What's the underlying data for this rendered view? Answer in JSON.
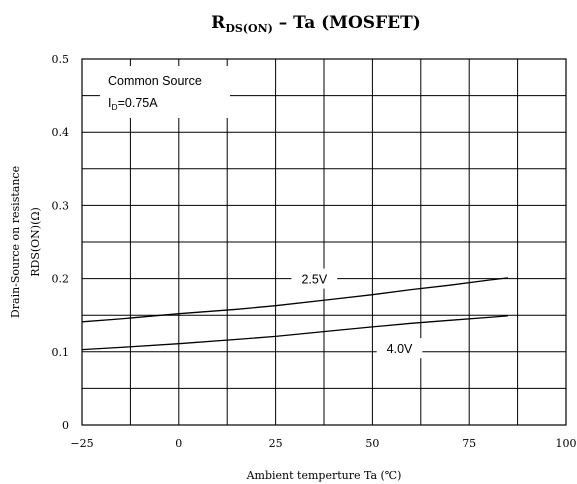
{
  "chart_data": {
    "type": "line",
    "title": {
      "main": "R",
      "subscript": "DS(ON)",
      "rest": " – Ta (MOSFET)"
    },
    "xlabel": "Ambient temperture  Ta (℃)",
    "ylabel": {
      "line1": "Drain-Source on resistance",
      "line2": "RDS(ON)(Ω)"
    },
    "xlim": [
      -25,
      100
    ],
    "ylim": [
      0,
      0.5
    ],
    "xticks": [
      -25,
      0,
      25,
      50,
      75,
      100
    ],
    "xtick_labels": [
      "−25",
      "0",
      "25",
      "50",
      "75",
      "100"
    ],
    "yticks": [
      0,
      0.1,
      0.2,
      0.3,
      0.4,
      0.5
    ],
    "ytick_labels": [
      "0",
      "0.1",
      "0.2",
      "0.3",
      "0.4",
      "0.5"
    ],
    "x_grid_step": 12.5,
    "y_grid_step": 0.05,
    "grid": true,
    "annotation": {
      "line1": "Common Source",
      "line2_main": "I",
      "line2_sub": "D",
      "line2_rest": "=0.75A"
    },
    "series": [
      {
        "name": "2.5V",
        "x": [
          -25,
          -15,
          0,
          15,
          25,
          40,
          50,
          60,
          70,
          80,
          85
        ],
        "y": [
          0.141,
          0.145,
          0.152,
          0.158,
          0.163,
          0.172,
          0.178,
          0.185,
          0.191,
          0.198,
          0.201
        ],
        "label_at": [
          35,
          0.2
        ]
      },
      {
        "name": "4.0V",
        "x": [
          -25,
          -15,
          0,
          15,
          25,
          40,
          50,
          60,
          70,
          80,
          85
        ],
        "y": [
          0.103,
          0.106,
          0.111,
          0.117,
          0.121,
          0.129,
          0.134,
          0.139,
          0.143,
          0.147,
          0.149
        ],
        "label_at": [
          57,
          0.105
        ]
      }
    ]
  }
}
